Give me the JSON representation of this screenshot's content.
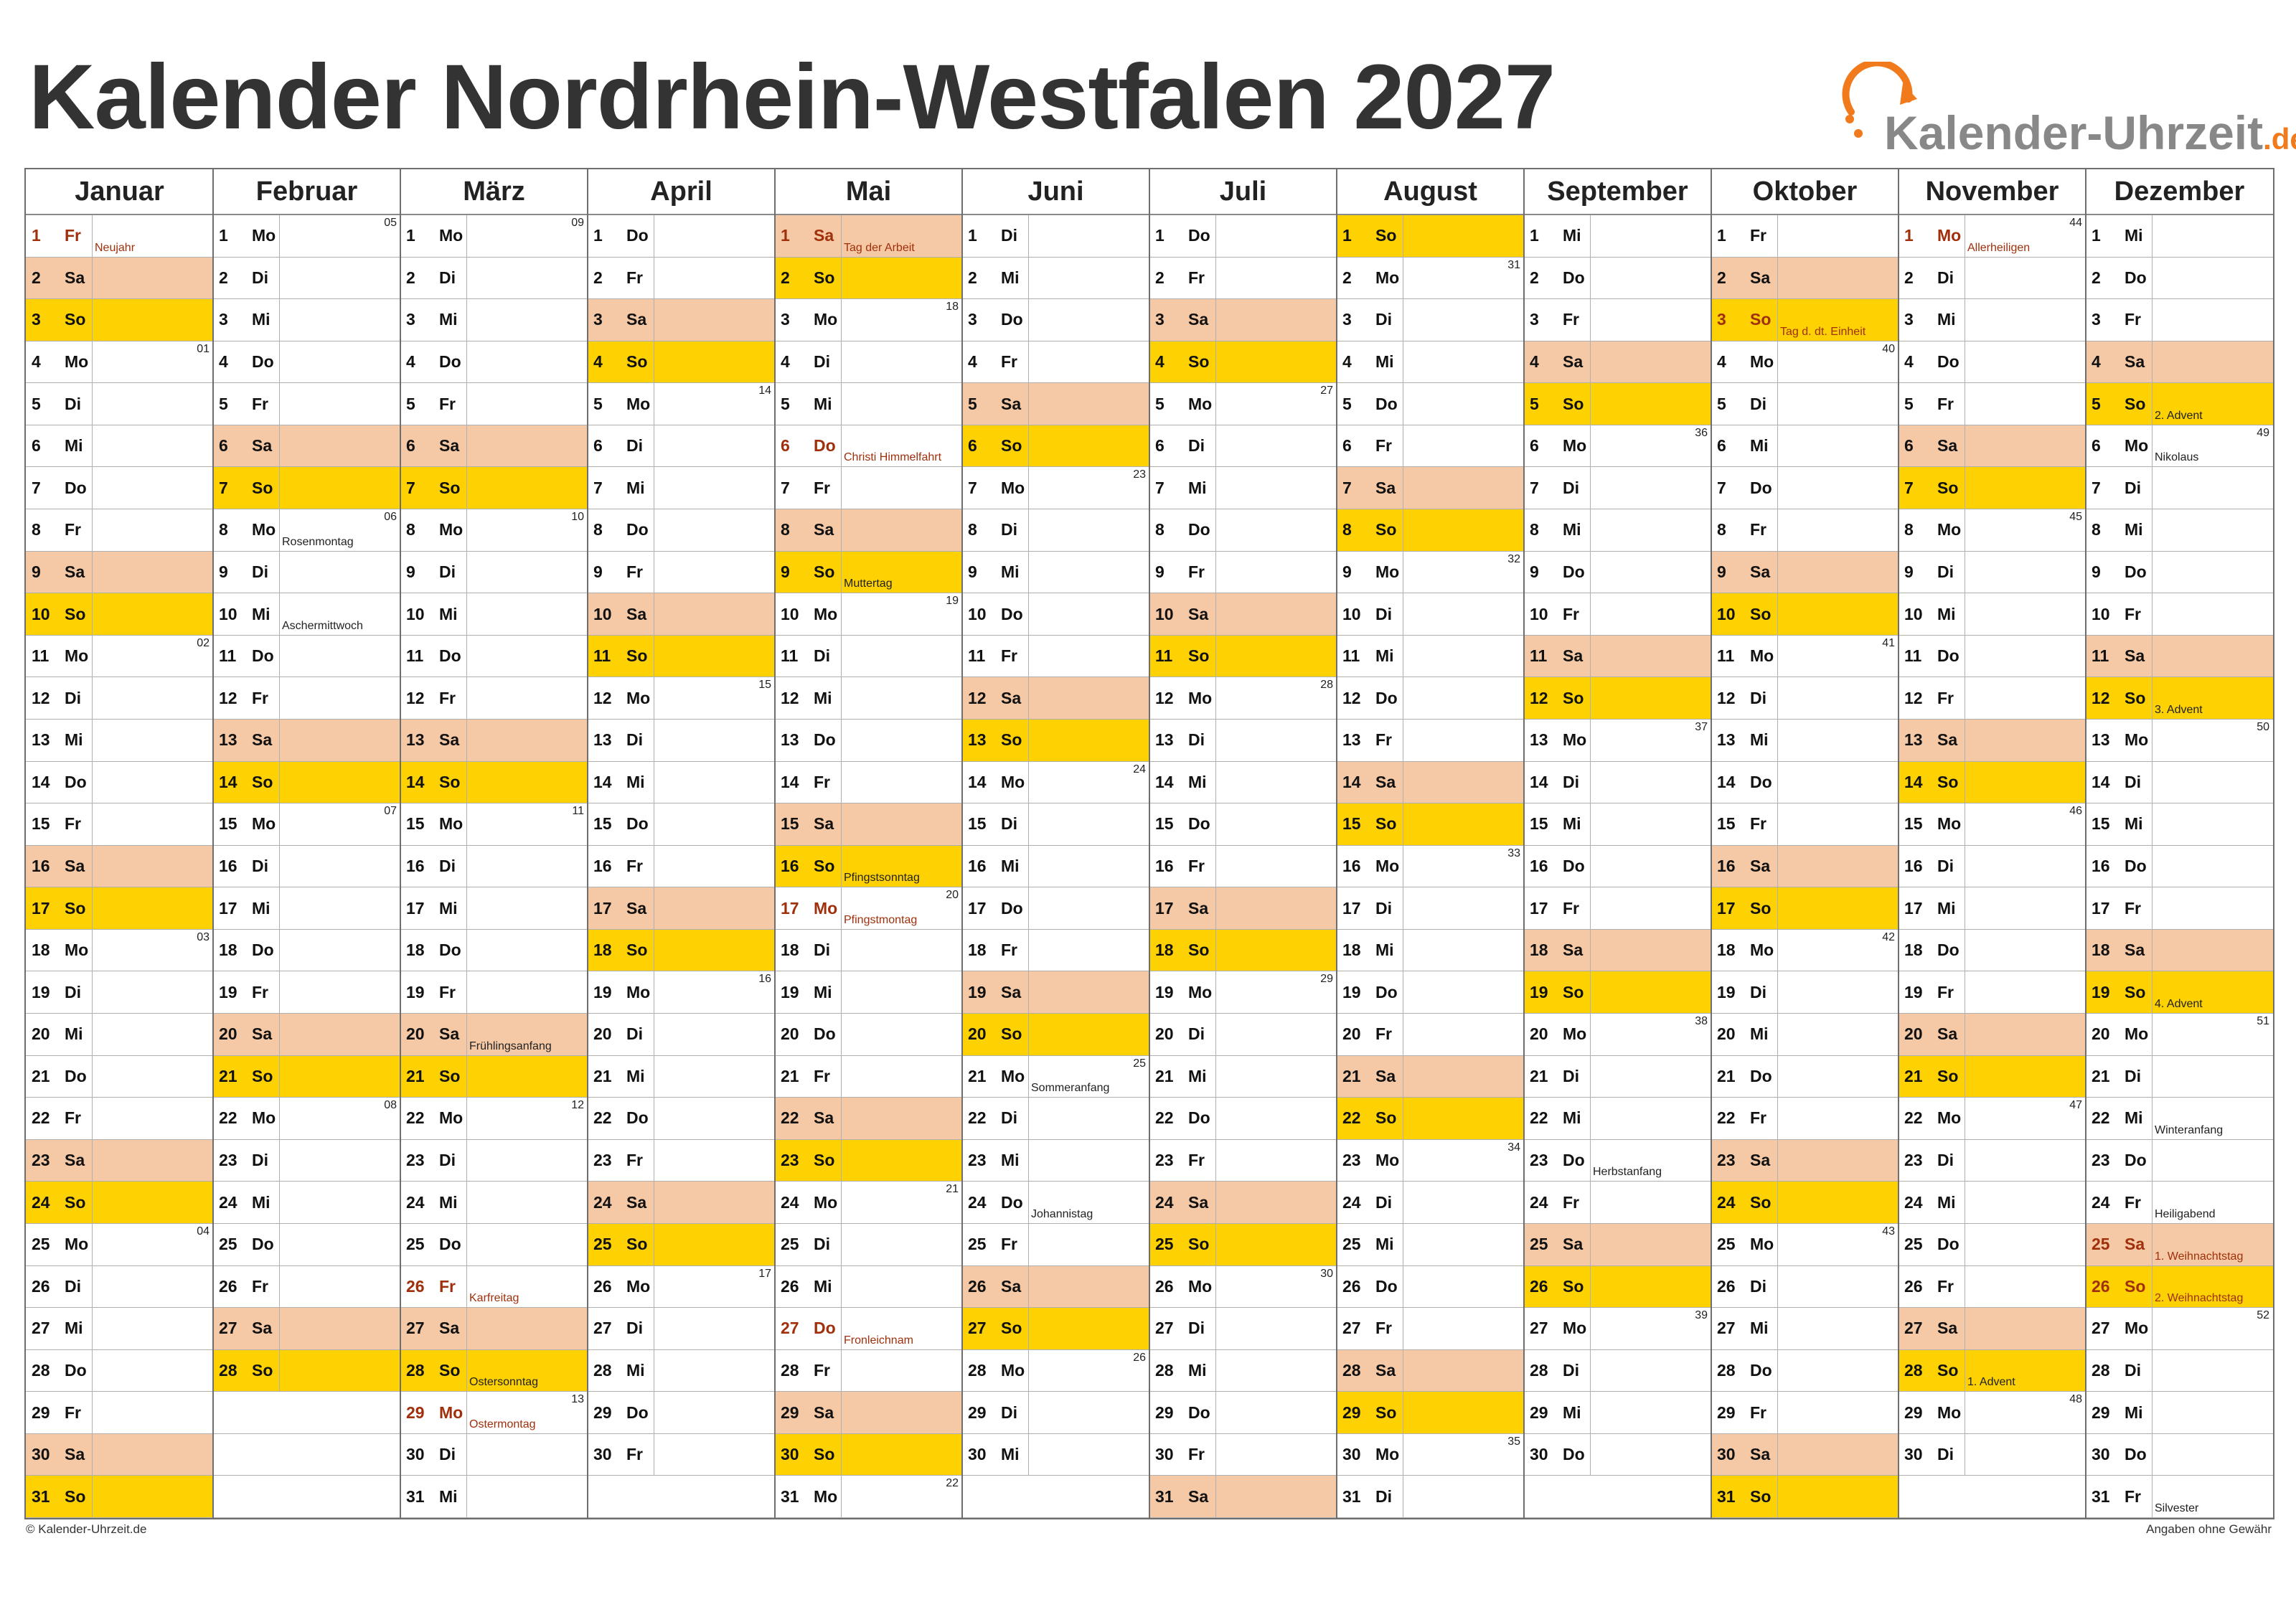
{
  "title": "Kalender Nordrhein-Westfalen 2027",
  "logo": {
    "text": "Kalender-Uhrzeit",
    "tld": ".de",
    "icon": "clock-arrow-icon",
    "accent": "#f07a1c"
  },
  "colors": {
    "saturday": "#f6c9a6",
    "sunday": "#fdd102",
    "holiday_text": "#a0300c"
  },
  "footer": {
    "left": "© Kalender-Uhrzeit.de",
    "right": "Angaben ohne Gewähr"
  },
  "weekday_names": [
    "Mo",
    "Di",
    "Mi",
    "Do",
    "Fr",
    "Sa",
    "So"
  ],
  "months": [
    {
      "name": "Januar",
      "days": 31,
      "start": 4
    },
    {
      "name": "Februar",
      "days": 28,
      "start": 0
    },
    {
      "name": "März",
      "days": 31,
      "start": 0
    },
    {
      "name": "April",
      "days": 30,
      "start": 3
    },
    {
      "name": "Mai",
      "days": 31,
      "start": 5
    },
    {
      "name": "Juni",
      "days": 30,
      "start": 1
    },
    {
      "name": "Juli",
      "days": 31,
      "start": 3
    },
    {
      "name": "August",
      "days": 31,
      "start": 6
    },
    {
      "name": "September",
      "days": 30,
      "start": 2
    },
    {
      "name": "Oktober",
      "days": 31,
      "start": 4
    },
    {
      "name": "November",
      "days": 30,
      "start": 0
    },
    {
      "name": "Dezember",
      "days": 31,
      "start": 2
    }
  ],
  "holidays": [
    {
      "m": 0,
      "d": 1,
      "label": "Neujahr"
    },
    {
      "m": 2,
      "d": 26,
      "label": "Karfreitag"
    },
    {
      "m": 2,
      "d": 29,
      "label": "Ostermontag"
    },
    {
      "m": 4,
      "d": 1,
      "label": "Tag der Arbeit"
    },
    {
      "m": 4,
      "d": 6,
      "label": "Christi Himmelfahrt"
    },
    {
      "m": 4,
      "d": 17,
      "label": "Pfingstmontag"
    },
    {
      "m": 4,
      "d": 27,
      "label": "Fronleichnam"
    },
    {
      "m": 9,
      "d": 3,
      "label": "Tag d. dt. Einheit"
    },
    {
      "m": 10,
      "d": 1,
      "label": "Allerheiligen"
    },
    {
      "m": 11,
      "d": 25,
      "label": "1. Weihnachtstag"
    },
    {
      "m": 11,
      "d": 26,
      "label": "2. Weihnachtstag"
    }
  ],
  "events": [
    {
      "m": 1,
      "d": 8,
      "label": "Rosenmontag"
    },
    {
      "m": 1,
      "d": 10,
      "label": "Aschermittwoch"
    },
    {
      "m": 2,
      "d": 20,
      "label": "Frühlingsanfang"
    },
    {
      "m": 2,
      "d": 28,
      "label": "Ostersonntag"
    },
    {
      "m": 4,
      "d": 9,
      "label": "Muttertag"
    },
    {
      "m": 4,
      "d": 16,
      "label": "Pfingstsonntag"
    },
    {
      "m": 5,
      "d": 21,
      "label": "Sommeranfang"
    },
    {
      "m": 5,
      "d": 24,
      "label": "Johannistag"
    },
    {
      "m": 8,
      "d": 23,
      "label": "Herbstanfang"
    },
    {
      "m": 10,
      "d": 28,
      "label": "1. Advent"
    },
    {
      "m": 11,
      "d": 5,
      "label": "2. Advent"
    },
    {
      "m": 11,
      "d": 6,
      "label": "Nikolaus"
    },
    {
      "m": 11,
      "d": 12,
      "label": "3. Advent"
    },
    {
      "m": 11,
      "d": 19,
      "label": "4. Advent"
    },
    {
      "m": 11,
      "d": 22,
      "label": "Winteranfang"
    },
    {
      "m": 11,
      "d": 24,
      "label": "Heiligabend"
    },
    {
      "m": 11,
      "d": 31,
      "label": "Silvester"
    }
  ]
}
